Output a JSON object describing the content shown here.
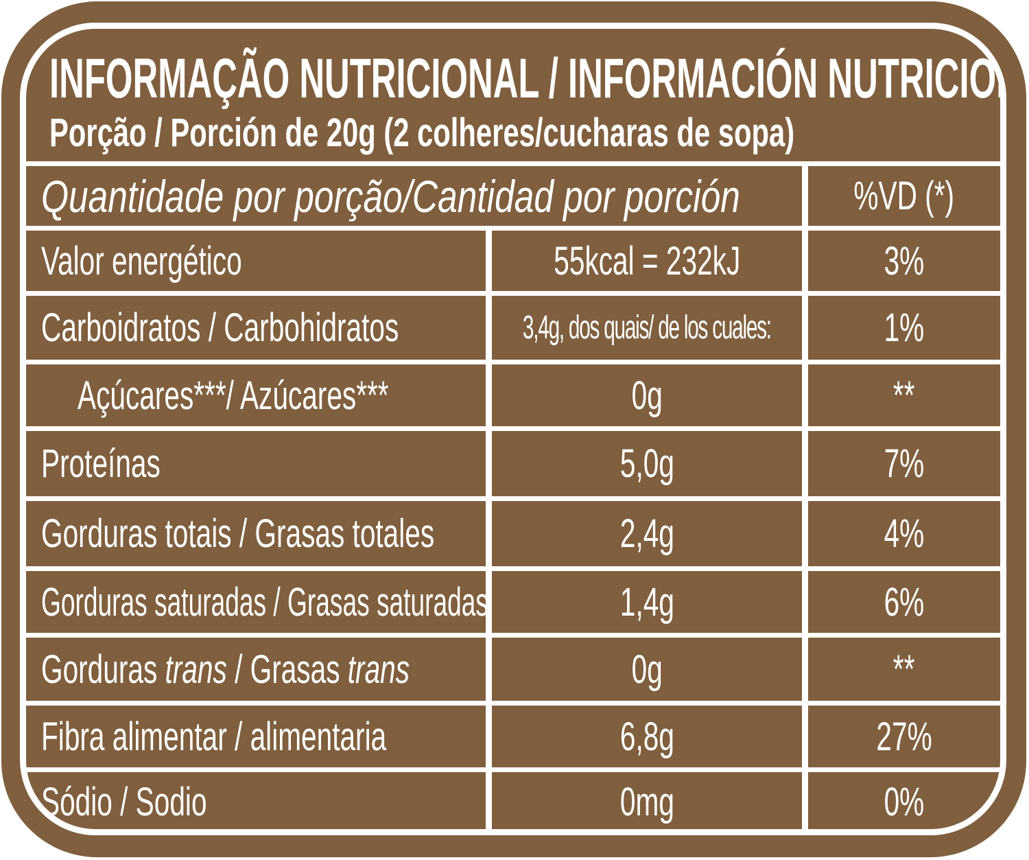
{
  "title": "INFORMAÇÃO NUTRICIONAL / INFORMACIÓN NUTRICIONAL",
  "serving": "Porção / Porción de 20g (2 colheres/cucharas de sopa)",
  "header": {
    "quantity": "Quantidade por porção/Cantidad por porción",
    "dv": "%VD (*)"
  },
  "rows": [
    {
      "label": "Valor energético",
      "amount": "55kcal = 232kJ",
      "dv": "3%"
    },
    {
      "label": "Carboidratos / Carbohidratos",
      "amount": "3,4g, dos quais/ de los cuales:",
      "dv": "1%"
    },
    {
      "label": "Açúcares***/ Azúcares***",
      "amount": "0g",
      "dv": "**"
    },
    {
      "label": "Proteínas",
      "amount": "5,0g",
      "dv": "7%"
    },
    {
      "label": "Gorduras totais / Grasas totales",
      "amount": "2,4g",
      "dv": "4%"
    },
    {
      "label": "Gorduras saturadas / Grasas saturadas",
      "amount": "1,4g",
      "dv": "6%"
    },
    {
      "label_parts": [
        "Gorduras ",
        "trans",
        " / Grasas ",
        "trans"
      ],
      "amount": "0g",
      "dv": "**"
    },
    {
      "label": "Fibra alimentar / alimentaria",
      "amount": "6,8g",
      "dv": "27%"
    },
    {
      "label": "Sódio / Sodio",
      "amount": "0mg",
      "dv": "0%"
    }
  ],
  "colors": {
    "brown": "#7f5f3e",
    "line": "#ffffff"
  }
}
